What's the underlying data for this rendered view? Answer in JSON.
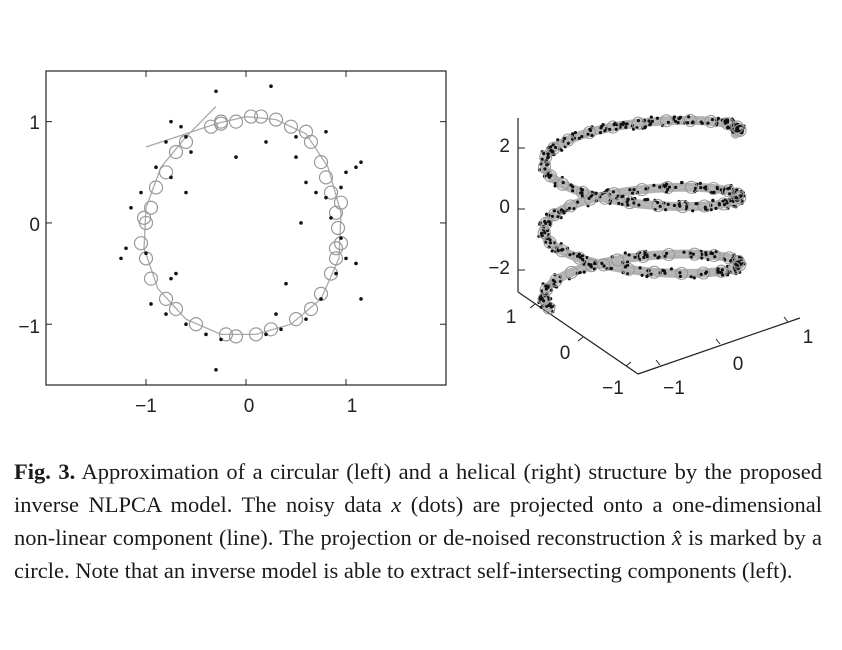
{
  "chart_data": [
    {
      "type": "scatter",
      "title": "",
      "xlabel": "",
      "ylabel": "",
      "xlim": [
        -2,
        2
      ],
      "ylim": [
        -1.6,
        1.5
      ],
      "x_ticks": [
        "−1",
        "0",
        "1"
      ],
      "y_ticks": [
        "1",
        "0",
        "−1"
      ],
      "series": [
        {
          "marker": "dot",
          "color": "#111111",
          "points": [
            [
              -0.3,
              1.3
            ],
            [
              0.25,
              1.35
            ],
            [
              -0.75,
              1.0
            ],
            [
              -0.65,
              0.95
            ],
            [
              -0.8,
              0.8
            ],
            [
              -0.6,
              0.85
            ],
            [
              -0.55,
              0.7
            ],
            [
              0.2,
              0.8
            ],
            [
              -0.1,
              0.65
            ],
            [
              -0.9,
              0.55
            ],
            [
              -0.75,
              0.45
            ],
            [
              -0.6,
              0.3
            ],
            [
              -1.05,
              0.3
            ],
            [
              -1.15,
              0.15
            ],
            [
              -1.2,
              -0.25
            ],
            [
              -1.25,
              -0.35
            ],
            [
              -1.0,
              -0.3
            ],
            [
              -0.7,
              -0.5
            ],
            [
              -0.75,
              -0.55
            ],
            [
              -0.95,
              -0.8
            ],
            [
              -0.8,
              -0.9
            ],
            [
              -0.6,
              -1.0
            ],
            [
              -0.4,
              -1.1
            ],
            [
              -0.25,
              -1.15
            ],
            [
              -0.3,
              -1.45
            ],
            [
              0.2,
              -1.1
            ],
            [
              0.35,
              -1.05
            ],
            [
              0.6,
              -0.95
            ],
            [
              0.75,
              -0.75
            ],
            [
              0.9,
              -0.5
            ],
            [
              1.0,
              -0.35
            ],
            [
              1.1,
              -0.4
            ],
            [
              1.15,
              -0.75
            ],
            [
              0.95,
              0.35
            ],
            [
              1.0,
              0.5
            ],
            [
              1.1,
              0.55
            ],
            [
              1.15,
              0.6
            ],
            [
              0.8,
              0.9
            ],
            [
              0.5,
              0.85
            ],
            [
              0.5,
              0.65
            ],
            [
              0.6,
              0.4
            ],
            [
              0.55,
              0.0
            ],
            [
              0.7,
              0.3
            ],
            [
              0.8,
              0.25
            ],
            [
              0.85,
              0.05
            ],
            [
              0.95,
              -0.15
            ],
            [
              0.4,
              -0.6
            ],
            [
              0.3,
              -0.9
            ]
          ]
        },
        {
          "marker": "open-circle",
          "color": "#999999",
          "points": [
            [
              -0.1,
              1.0
            ],
            [
              0.05,
              1.05
            ],
            [
              0.15,
              1.05
            ],
            [
              0.3,
              1.02
            ],
            [
              0.45,
              0.95
            ],
            [
              -0.25,
              1.0
            ],
            [
              -0.35,
              0.95
            ],
            [
              -0.6,
              0.8
            ],
            [
              -0.7,
              0.7
            ],
            [
              -0.8,
              0.5
            ],
            [
              -0.9,
              0.35
            ],
            [
              -0.95,
              0.15
            ],
            [
              -1.0,
              0.0
            ],
            [
              -1.05,
              -0.2
            ],
            [
              -1.0,
              -0.35
            ],
            [
              -0.95,
              -0.55
            ],
            [
              -0.8,
              -0.75
            ],
            [
              -0.7,
              -0.85
            ],
            [
              -0.5,
              -1.0
            ],
            [
              -0.2,
              -1.1
            ],
            [
              -0.1,
              -1.12
            ],
            [
              0.1,
              -1.1
            ],
            [
              0.25,
              -1.05
            ],
            [
              0.5,
              -0.95
            ],
            [
              0.65,
              -0.85
            ],
            [
              0.75,
              -0.7
            ],
            [
              0.85,
              -0.5
            ],
            [
              0.9,
              -0.35
            ],
            [
              0.95,
              -0.2
            ],
            [
              0.92,
              -0.05
            ],
            [
              0.9,
              0.1
            ],
            [
              0.85,
              0.3
            ],
            [
              0.8,
              0.45
            ],
            [
              0.75,
              0.6
            ],
            [
              0.65,
              0.8
            ],
            [
              0.6,
              0.9
            ],
            [
              -0.25,
              0.98
            ],
            [
              0.9,
              -0.25
            ],
            [
              0.95,
              0.2
            ],
            [
              -1.02,
              0.05
            ]
          ]
        }
      ],
      "curve": [
        [
          -1.0,
          0.75
        ],
        [
          -0.6,
          0.88
        ],
        [
          -0.3,
          0.98
        ],
        [
          0.0,
          1.05
        ],
        [
          0.3,
          1.02
        ],
        [
          0.6,
          0.88
        ],
        [
          0.82,
          0.55
        ],
        [
          0.95,
          0.1
        ],
        [
          0.93,
          -0.35
        ],
        [
          0.75,
          -0.75
        ],
        [
          0.45,
          -1.0
        ],
        [
          0.1,
          -1.1
        ],
        [
          -0.25,
          -1.1
        ],
        [
          -0.6,
          -0.95
        ],
        [
          -0.88,
          -0.65
        ],
        [
          -1.02,
          -0.25
        ],
        [
          -1.0,
          0.15
        ],
        [
          -0.85,
          0.55
        ],
        [
          -0.6,
          0.85
        ],
        [
          -0.3,
          1.15
        ]
      ]
    },
    {
      "type": "scatter",
      "title": "",
      "z_ticks": [
        "2",
        "0",
        "−2"
      ],
      "x_ticks": [
        "1",
        "0",
        "−1"
      ],
      "y_ticks": [
        "−1",
        "0",
        "1"
      ],
      "x_range": [
        -1.2,
        1.2
      ],
      "y_range": [
        -1.2,
        1.2
      ],
      "z_range": [
        -3.3,
        2.8
      ],
      "helix_turns": 2.6,
      "helix_radius": 1.0,
      "helix_z_span": [
        -3.1,
        2.6
      ],
      "dots_color": "#111111",
      "circles_color": "#999999"
    }
  ],
  "caption": {
    "label": "Fig. 3.",
    "text_1": " Approximation of a circular (left) and a helical (right) structure by the proposed inverse NLPCA model. The noisy data ",
    "sym_x": "x",
    "text_2": " (dots) are projected onto a one-dimensional non-linear component (line). The projection or de-noised reconstruction ",
    "sym_xhat": "x̂",
    "text_3": " is marked by a circle. Note that an inverse model is able to extract self-intersecting components (left)."
  }
}
